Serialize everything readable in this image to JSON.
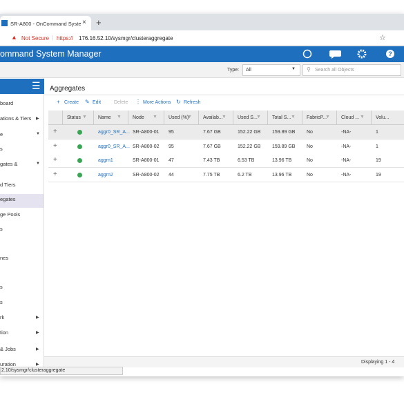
{
  "browser": {
    "tab_title": "SR-A800 - OnCommand Syste",
    "tab_close": "×",
    "new_tab": "+",
    "security": "Not Secure",
    "url_scheme": "https://",
    "url": "176.16.52.10/sysmgr/clusteraggregate",
    "status_url": "2.10/sysmgr/clusteraggregate"
  },
  "header": {
    "title": "ommand System Manager"
  },
  "toolbar": {
    "type_label": "Type:",
    "type_value": "All",
    "search_placeholder": "Search all Objects"
  },
  "sidebar": {
    "items": [
      "board",
      "ations & Tiers",
      "e",
      "s",
      "gates &",
      "d Tiers",
      "egates",
      "ge Pools",
      "s",
      "nes",
      "s",
      "s",
      "rk",
      "tion",
      "& Jobs",
      "uration"
    ]
  },
  "page": {
    "title": "Aggregates",
    "actions": [
      "Create",
      "Edit",
      "Delete",
      "More Actions",
      "Refresh"
    ]
  },
  "table": {
    "columns": [
      "Status",
      "Name",
      "Node",
      "Used (%)",
      "Availab...",
      "Used S...",
      "Total S...",
      "FabricP...",
      "Cloud ...",
      "Volu..."
    ],
    "rows": [
      [
        "aggr0_SR_A...",
        "SR-A800-01",
        "95",
        "7.67 GB",
        "152.22 GB",
        "159.89 GB",
        "No",
        "-NA-",
        "1"
      ],
      [
        "aggr0_SR_A...",
        "SR-A800-02",
        "95",
        "7.67 GB",
        "152.22 GB",
        "159.89 GB",
        "No",
        "-NA-",
        "1"
      ],
      [
        "aggrn1",
        "SR-A800-01",
        "47",
        "7.43 TB",
        "6.53 TB",
        "13.96 TB",
        "No",
        "-NA-",
        "19"
      ],
      [
        "aggrn2",
        "SR-A800-02",
        "44",
        "7.75 TB",
        "6.2 TB",
        "13.96 TB",
        "No",
        "-NA-",
        "19"
      ]
    ]
  },
  "footer": {
    "displaying": "Displaying 1 - 4"
  }
}
